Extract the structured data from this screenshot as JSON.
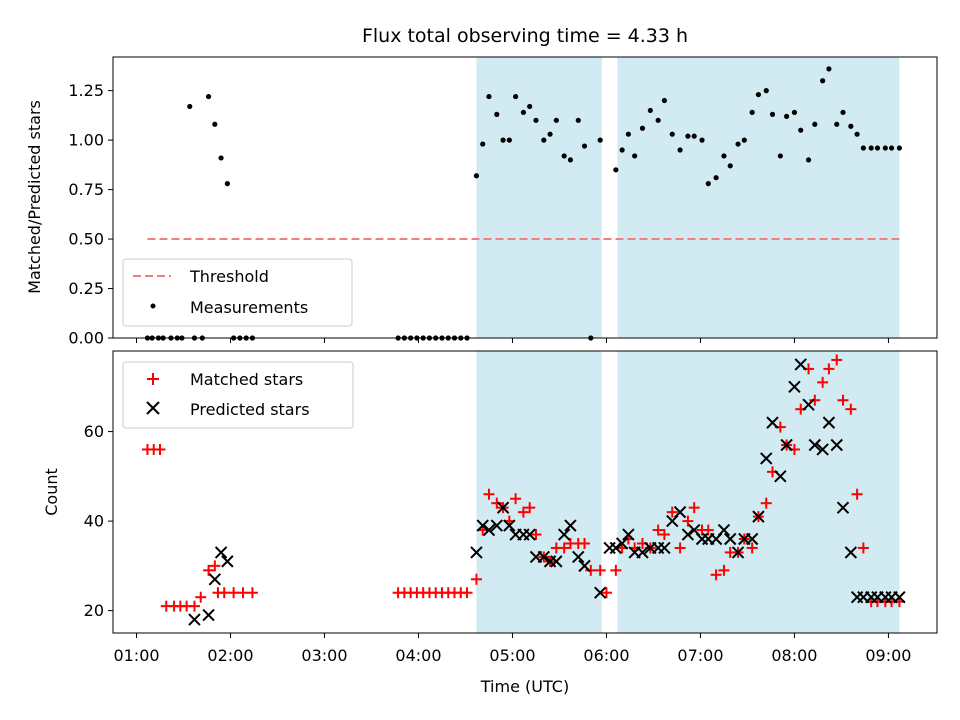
{
  "colors": {
    "shade": "#add8e6",
    "threshold": "#f08080",
    "matched": "#ff0000",
    "predicted": "#000000",
    "measurement": "#000000"
  },
  "chart_data": [
    {
      "type": "scatter",
      "title": "Flux total observing time = 4.33 h",
      "xlabel": "",
      "ylabel": "Matched/Predicted stars",
      "xlim": [
        "00:45",
        "09:31"
      ],
      "ylim": [
        0,
        1.42
      ],
      "yticks": [
        0.0,
        0.25,
        0.5,
        0.75,
        1.0,
        1.25
      ],
      "ytick_labels": [
        "0.00",
        "0.25",
        "0.50",
        "0.75",
        "1.00",
        "1.25"
      ],
      "xtick_labels": [
        "01:00",
        "02:00",
        "03:00",
        "04:00",
        "05:00",
        "06:00",
        "07:00",
        "08:00",
        "09:00"
      ],
      "legend_position": "lower-left",
      "shaded_intervals": [
        [
          "04:37",
          "05:57"
        ],
        [
          "06:07",
          "09:07"
        ]
      ],
      "threshold": {
        "name": "Threshold",
        "value": 0.5,
        "x_range": [
          "01:07",
          "09:07"
        ]
      },
      "series": [
        {
          "name": "Measurements",
          "x": [
            "01:07",
            "01:10",
            "01:14",
            "01:17",
            "01:22",
            "01:26",
            "01:29",
            "01:34",
            "01:37",
            "01:42",
            "01:46",
            "01:50",
            "01:54",
            "01:58",
            "02:02",
            "02:06",
            "02:10",
            "02:14",
            "03:47",
            "03:51",
            "03:55",
            "03:59",
            "04:03",
            "04:07",
            "04:11",
            "04:15",
            "04:19",
            "04:23",
            "04:27",
            "04:31",
            "04:37",
            "04:41",
            "04:45",
            "04:50",
            "04:54",
            "04:58",
            "05:02",
            "05:07",
            "05:11",
            "05:15",
            "05:20",
            "05:24",
            "05:28",
            "05:33",
            "05:37",
            "05:42",
            "05:46",
            "05:50",
            "05:56",
            "06:06",
            "06:10",
            "06:14",
            "06:18",
            "06:23",
            "06:28",
            "06:33",
            "06:37",
            "06:42",
            "06:47",
            "06:52",
            "06:56",
            "07:01",
            "07:05",
            "07:10",
            "07:15",
            "07:19",
            "07:24",
            "07:28",
            "07:33",
            "07:37",
            "07:42",
            "07:46",
            "07:51",
            "07:55",
            "08:00",
            "08:04",
            "08:09",
            "08:13",
            "08:18",
            "08:22",
            "08:27",
            "08:31",
            "08:36",
            "08:40",
            "08:44",
            "08:49",
            "08:53",
            "08:58",
            "09:02",
            "09:07"
          ],
          "y": [
            0,
            0,
            0,
            0,
            0,
            0,
            0,
            1.17,
            0,
            0,
            1.22,
            1.08,
            0.91,
            0.78,
            0,
            0,
            0,
            0,
            0,
            0,
            0,
            0,
            0,
            0,
            0,
            0,
            0,
            0,
            0,
            0,
            0.82,
            0.98,
            1.22,
            1.13,
            1.0,
            1.0,
            1.22,
            1.14,
            1.17,
            1.1,
            1.0,
            1.03,
            1.1,
            0.92,
            0.9,
            1.1,
            0.97,
            0,
            1.0,
            0.85,
            0.95,
            1.03,
            0.92,
            1.06,
            1.15,
            1.1,
            1.2,
            1.03,
            0.95,
            1.02,
            1.02,
            1.0,
            0.78,
            0.81,
            0.92,
            0.87,
            0.98,
            1.0,
            1.14,
            1.23,
            1.25,
            1.13,
            0.92,
            1.12,
            1.14,
            1.05,
            0.9,
            1.08,
            1.3,
            1.36,
            1.08,
            1.14,
            1.07,
            1.03,
            0.96,
            0.96,
            0.96,
            0.96,
            0.96,
            0.96
          ]
        }
      ]
    },
    {
      "type": "scatter",
      "title": "",
      "xlabel": "Time (UTC)",
      "ylabel": "Count",
      "xlim": [
        "00:45",
        "09:31"
      ],
      "ylim": [
        15,
        78
      ],
      "yticks": [
        20,
        40,
        60
      ],
      "ytick_labels": [
        "20",
        "40",
        "60"
      ],
      "xtick_labels": [
        "01:00",
        "02:00",
        "03:00",
        "04:00",
        "05:00",
        "06:00",
        "07:00",
        "08:00",
        "09:00"
      ],
      "legend_position": "upper-left",
      "shaded_intervals": [
        [
          "04:37",
          "05:57"
        ],
        [
          "06:07",
          "09:07"
        ]
      ],
      "series": [
        {
          "name": "Matched stars",
          "marker": "+",
          "x": [
            "01:07",
            "01:11",
            "01:15",
            "01:19",
            "01:24",
            "01:28",
            "01:32",
            "01:37",
            "01:41",
            "01:46",
            "01:50",
            "01:52",
            "01:56",
            "02:02",
            "02:08",
            "02:14",
            "03:47",
            "03:51",
            "03:55",
            "03:59",
            "04:03",
            "04:07",
            "04:11",
            "04:15",
            "04:19",
            "04:23",
            "04:27",
            "04:31",
            "04:37",
            "04:41",
            "04:45",
            "04:50",
            "04:54",
            "04:58",
            "05:02",
            "05:07",
            "05:11",
            "05:15",
            "05:20",
            "05:24",
            "05:28",
            "05:33",
            "05:37",
            "05:42",
            "05:46",
            "05:50",
            "05:56",
            "06:00",
            "06:06",
            "06:10",
            "06:14",
            "06:18",
            "06:23",
            "06:28",
            "06:33",
            "06:37",
            "06:42",
            "06:47",
            "06:52",
            "06:56",
            "07:01",
            "07:05",
            "07:10",
            "07:15",
            "07:19",
            "07:24",
            "07:28",
            "07:33",
            "07:37",
            "07:42",
            "07:46",
            "07:51",
            "07:55",
            "08:00",
            "08:04",
            "08:09",
            "08:13",
            "08:18",
            "08:22",
            "08:27",
            "08:31",
            "08:36",
            "08:40",
            "08:44",
            "08:49",
            "08:53",
            "08:58",
            "09:02",
            "09:07"
          ],
          "y": [
            56,
            56,
            56,
            21,
            21,
            21,
            21,
            21,
            23,
            29,
            30,
            24,
            24,
            24,
            24,
            24,
            24,
            24,
            24,
            24,
            24,
            24,
            24,
            24,
            24,
            24,
            24,
            24,
            27,
            38,
            46,
            44,
            43,
            40,
            45,
            42,
            43,
            37,
            32,
            31,
            34,
            34,
            35,
            35,
            35,
            29,
            29,
            24,
            29,
            34,
            36,
            34,
            35,
            34,
            38,
            37,
            42,
            34,
            40,
            43,
            38,
            38,
            28,
            29,
            33,
            33,
            36,
            34,
            41,
            44,
            51,
            61,
            57,
            56,
            65,
            74,
            67,
            71,
            74,
            76,
            67,
            65,
            46,
            34,
            22,
            22,
            22,
            22,
            22
          ],
          "y_count": 89
        },
        {
          "name": "Predicted stars",
          "marker": "x",
          "x": [
            "01:37",
            "01:46",
            "01:50",
            "01:54",
            "01:58",
            "04:37",
            "04:41",
            "04:45",
            "04:50",
            "04:54",
            "04:58",
            "05:02",
            "05:07",
            "05:11",
            "05:15",
            "05:20",
            "05:24",
            "05:28",
            "05:33",
            "05:37",
            "05:42",
            "05:46",
            "05:56",
            "06:02",
            "06:06",
            "06:10",
            "06:14",
            "06:18",
            "06:23",
            "06:28",
            "06:33",
            "06:37",
            "06:42",
            "06:47",
            "06:52",
            "06:56",
            "07:01",
            "07:05",
            "07:10",
            "07:15",
            "07:19",
            "07:24",
            "07:28",
            "07:33",
            "07:37",
            "07:42",
            "07:46",
            "07:51",
            "07:55",
            "08:00",
            "08:04",
            "08:09",
            "08:13",
            "08:18",
            "08:22",
            "08:27",
            "08:31",
            "08:36",
            "08:40",
            "08:44",
            "08:49",
            "08:53",
            "08:58",
            "09:02",
            "09:07"
          ],
          "y": [
            18,
            19,
            27,
            33,
            31,
            33,
            39,
            38,
            39,
            43,
            39,
            37,
            37,
            37,
            32,
            32,
            31,
            31,
            37,
            39,
            32,
            30,
            24,
            34,
            34,
            35,
            37,
            33,
            33,
            34,
            34,
            34,
            40,
            42,
            37,
            38,
            36,
            36,
            36,
            38,
            36,
            33,
            36,
            36,
            41,
            54,
            62,
            50,
            57,
            70,
            75,
            66,
            57,
            56,
            62,
            57,
            43,
            33,
            23,
            23,
            23,
            23,
            23,
            23,
            23
          ]
        }
      ]
    }
  ]
}
